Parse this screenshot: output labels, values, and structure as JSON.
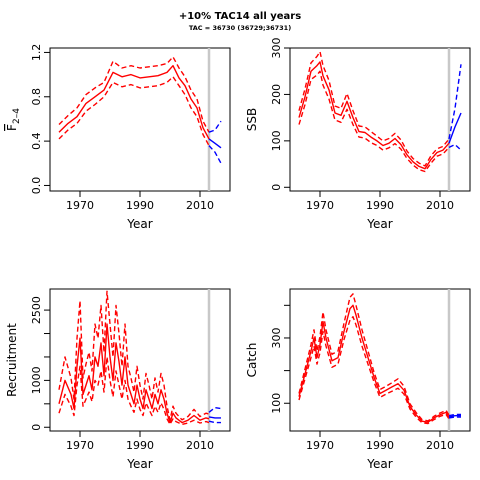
{
  "header": {
    "title": "+10% TAC14 all years",
    "subtitle": "TAC = 36730 (36729;36731)"
  },
  "colors": {
    "historic": "#ff0000",
    "projection": "#0000ff",
    "ref_line": "#c8c8c8",
    "axis": "#000000"
  },
  "chart_data": [
    {
      "type": "line",
      "ylabel": "F̅ 2-4",
      "ylabel_main": "F",
      "ylabel_sub": "2–4",
      "xlabel": "Year",
      "xlim": [
        1960,
        2020
      ],
      "ylim": [
        -0.05,
        1.24
      ],
      "xticks": [
        1970,
        1990,
        2010
      ],
      "yticks": [
        0.0,
        0.4,
        0.8,
        1.2
      ],
      "ytick_labels": [
        "0.0",
        "0.4",
        "0.8",
        "1.2"
      ],
      "ref_line_x": 2013,
      "hist": {
        "x": [
          1963,
          1966,
          1969,
          1972,
          1975,
          1978,
          1981,
          1984,
          1987,
          1990,
          1993,
          1996,
          1999,
          2001,
          2003,
          2005,
          2007,
          2009,
          2011,
          2013
        ],
        "mid": [
          0.48,
          0.56,
          0.62,
          0.74,
          0.8,
          0.86,
          1.02,
          0.98,
          1.0,
          0.97,
          0.98,
          0.99,
          1.02,
          1.08,
          0.97,
          0.9,
          0.78,
          0.7,
          0.52,
          0.42
        ],
        "low": [
          0.42,
          0.5,
          0.56,
          0.67,
          0.73,
          0.8,
          0.93,
          0.89,
          0.91,
          0.88,
          0.89,
          0.9,
          0.93,
          0.98,
          0.9,
          0.82,
          0.7,
          0.62,
          0.46,
          0.36
        ],
        "high": [
          0.55,
          0.63,
          0.7,
          0.82,
          0.88,
          0.93,
          1.12,
          1.06,
          1.08,
          1.06,
          1.07,
          1.08,
          1.1,
          1.16,
          1.06,
          0.98,
          0.86,
          0.78,
          0.58,
          0.48
        ]
      },
      "proj": {
        "x": [
          2013,
          2015,
          2017
        ],
        "mid": [
          0.42,
          0.38,
          0.34
        ],
        "low": [
          0.36,
          0.3,
          0.2
        ],
        "high": [
          0.48,
          0.5,
          0.58
        ]
      }
    },
    {
      "type": "line",
      "ylabel": "SSB",
      "xlabel": "Year",
      "xlim": [
        1960,
        2020
      ],
      "ylim": [
        -8,
        300
      ],
      "xticks": [
        1970,
        1990,
        2010
      ],
      "yticks": [
        0,
        100,
        200,
        300
      ],
      "ytick_labels": [
        "0",
        "100",
        "200",
        "300"
      ],
      "ref_line_x": 2013,
      "hist": {
        "x": [
          1963,
          1965,
          1967,
          1969,
          1970,
          1971,
          1973,
          1975,
          1977,
          1979,
          1981,
          1983,
          1985,
          1987,
          1989,
          1991,
          1993,
          1995,
          1997,
          1999,
          2001,
          2003,
          2005,
          2007,
          2009,
          2011,
          2013
        ],
        "mid": [
          150,
          195,
          250,
          262,
          270,
          240,
          210,
          160,
          155,
          185,
          150,
          120,
          118,
          108,
          100,
          90,
          95,
          105,
          92,
          70,
          55,
          45,
          40,
          60,
          75,
          80,
          95
        ],
        "low": [
          135,
          178,
          232,
          242,
          250,
          220,
          190,
          145,
          140,
          168,
          135,
          108,
          106,
          96,
          90,
          80,
          85,
          94,
          82,
          62,
          48,
          38,
          34,
          52,
          67,
          72,
          86
        ],
        "high": [
          165,
          212,
          268,
          282,
          292,
          262,
          230,
          175,
          170,
          202,
          165,
          132,
          130,
          120,
          110,
          100,
          105,
          116,
          102,
          78,
          62,
          52,
          46,
          68,
          83,
          88,
          104
        ]
      },
      "proj": {
        "x": [
          2013,
          2015,
          2017
        ],
        "mid": [
          95,
          130,
          160
        ],
        "low": [
          86,
          92,
          80
        ],
        "high": [
          104,
          170,
          265
        ]
      }
    },
    {
      "type": "line",
      "ylabel": "Recruitment",
      "xlabel": "Year",
      "xlim": [
        1960,
        2020
      ],
      "ylim": [
        -80,
        2950
      ],
      "xticks": [
        1970,
        1990,
        2010
      ],
      "yticks": [
        0,
        500,
        1000,
        1500,
        2000,
        2500
      ],
      "ytick_labels": [
        "0",
        "",
        "1000",
        "",
        "",
        "2500"
      ],
      "ref_line_x": 2013,
      "hist": {
        "x": [
          1963,
          1965,
          1967,
          1968,
          1969,
          1970,
          1971,
          1972,
          1973,
          1974,
          1975,
          1976,
          1977,
          1978,
          1979,
          1980,
          1981,
          1982,
          1983,
          1984,
          1985,
          1986,
          1987,
          1988,
          1989,
          1990,
          1991,
          1992,
          1993,
          1994,
          1995,
          1996,
          1997,
          1998,
          1999,
          2000,
          2001,
          2002,
          2004,
          2006,
          2008,
          2010,
          2012,
          2013
        ],
        "mid": [
          500,
          1000,
          700,
          400,
          1300,
          1900,
          700,
          900,
          1100,
          800,
          1500,
          1300,
          1800,
          1100,
          2200,
          1500,
          1000,
          1800,
          1400,
          900,
          1500,
          900,
          700,
          500,
          900,
          600,
          400,
          800,
          600,
          400,
          700,
          500,
          800,
          600,
          300,
          100,
          300,
          200,
          100,
          150,
          250,
          150,
          200,
          180
        ],
        "low": [
          300,
          700,
          450,
          250,
          900,
          1300,
          450,
          600,
          750,
          550,
          1000,
          900,
          1200,
          750,
          1500,
          1000,
          650,
          1200,
          900,
          600,
          1000,
          600,
          450,
          320,
          600,
          380,
          250,
          520,
          380,
          250,
          450,
          320,
          520,
          380,
          180,
          60,
          180,
          120,
          60,
          90,
          150,
          90,
          120,
          100
        ],
        "high": [
          800,
          1500,
          1050,
          600,
          1900,
          2700,
          1050,
          1350,
          1600,
          1200,
          2200,
          1900,
          2600,
          1600,
          2900,
          2200,
          1500,
          2600,
          2000,
          1300,
          2200,
          1300,
          1050,
          750,
          1300,
          900,
          600,
          1150,
          900,
          600,
          1050,
          750,
          1150,
          900,
          450,
          160,
          450,
          300,
          160,
          230,
          380,
          230,
          300,
          280
        ]
      },
      "proj": {
        "x": [
          2013,
          2015,
          2017
        ],
        "mid": [
          220,
          200,
          200
        ],
        "low": [
          130,
          100,
          100
        ],
        "high": [
          320,
          420,
          400
        ]
      }
    },
    {
      "type": "line",
      "ylabel": "Catch",
      "xlabel": "Year",
      "xlim": [
        1960,
        2020
      ],
      "ylim": [
        15,
        450
      ],
      "xticks": [
        1970,
        1990,
        2010
      ],
      "yticks": [
        100,
        200,
        300,
        400
      ],
      "ytick_labels": [
        "100",
        "",
        "300",
        ""
      ],
      "ref_line_x": 2013,
      "hist": {
        "x": [
          1963,
          1965,
          1967,
          1968,
          1969,
          1970,
          1971,
          1972,
          1974,
          1976,
          1978,
          1980,
          1981,
          1982,
          1984,
          1986,
          1988,
          1990,
          1992,
          1994,
          1996,
          1998,
          2000,
          2002,
          2004,
          2006,
          2008,
          2010,
          2012,
          2013
        ],
        "mid": [
          120,
          190,
          260,
          300,
          240,
          280,
          350,
          300,
          230,
          240,
          320,
          390,
          400,
          370,
          300,
          240,
          180,
          130,
          140,
          150,
          160,
          140,
          90,
          65,
          45,
          42,
          55,
          65,
          72,
          58
        ],
        "low": [
          110,
          175,
          240,
          275,
          220,
          255,
          320,
          275,
          210,
          220,
          295,
          355,
          365,
          340,
          275,
          220,
          165,
          118,
          128,
          137,
          146,
          128,
          82,
          58,
          40,
          38,
          50,
          60,
          66,
          52
        ],
        "high": [
          130,
          205,
          280,
          325,
          260,
          305,
          380,
          325,
          250,
          260,
          345,
          425,
          435,
          400,
          325,
          260,
          195,
          142,
          152,
          163,
          175,
          152,
          98,
          72,
          50,
          46,
          60,
          70,
          78,
          64
        ]
      },
      "proj": {
        "x": [
          2013,
          2015,
          2017
        ],
        "mid": [
          58,
          62,
          62
        ],
        "low": [
          55,
          58,
          58
        ],
        "high": [
          62,
          66,
          66
        ]
      }
    }
  ]
}
